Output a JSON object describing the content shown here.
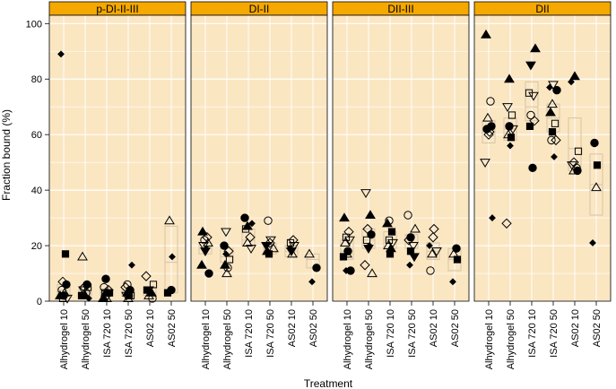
{
  "chart_data": {
    "type": "scatter",
    "xlabel": "Treatment",
    "ylabel": "Fraction bound (%)",
    "ylim": [
      0,
      103
    ],
    "yticks": [
      "0",
      "20",
      "40",
      "60",
      "80",
      "100"
    ],
    "grid": true,
    "categories": [
      "Alhydrogel 10",
      "Alhydrogel 50",
      "ISA 720 10",
      "ISA 720 50",
      "AS02 10",
      "AS02 50"
    ],
    "colors": {
      "strip": "#F5A800",
      "panel": "#FBE6C2",
      "grid": "#FFFFFF",
      "box": "#D4C4A8",
      "marker": "#000000"
    },
    "panels": [
      {
        "label": "p-DI-II-III",
        "boxes": [
          [
            2,
            4,
            6
          ],
          [
            2,
            3,
            5
          ],
          [
            2,
            3,
            4
          ],
          [
            2,
            3,
            4
          ],
          [
            2,
            3,
            5
          ],
          [
            3,
            14,
            27
          ]
        ],
        "points": [
          [
            0,
            89,
            "dm"
          ],
          [
            0,
            17,
            "sq"
          ],
          [
            0,
            7,
            "od"
          ],
          [
            0,
            6,
            "fc"
          ],
          [
            0,
            4,
            "oc"
          ],
          [
            0,
            3,
            "ot"
          ],
          [
            0,
            2,
            "fc"
          ],
          [
            0,
            2,
            "ft"
          ],
          [
            0,
            1,
            "it"
          ],
          [
            0,
            1,
            "os"
          ],
          [
            1,
            16,
            "ot"
          ],
          [
            1,
            6,
            "fc"
          ],
          [
            1,
            5,
            "od"
          ],
          [
            1,
            5,
            "os"
          ],
          [
            1,
            4,
            "it"
          ],
          [
            1,
            3,
            "oc"
          ],
          [
            1,
            2,
            "ft"
          ],
          [
            1,
            2,
            "sq"
          ],
          [
            1,
            1,
            "dm"
          ],
          [
            2,
            8,
            "fc"
          ],
          [
            2,
            5,
            "oc"
          ],
          [
            2,
            4,
            "od"
          ],
          [
            2,
            3,
            "ft"
          ],
          [
            2,
            3,
            "sq"
          ],
          [
            2,
            3,
            "os"
          ],
          [
            2,
            2,
            "it"
          ],
          [
            2,
            1,
            "ot"
          ],
          [
            2,
            1,
            "ft"
          ],
          [
            3,
            13,
            "dm"
          ],
          [
            3,
            6,
            "oc"
          ],
          [
            3,
            5,
            "od"
          ],
          [
            3,
            4,
            "fc"
          ],
          [
            3,
            3,
            "ft"
          ],
          [
            3,
            2,
            "os"
          ],
          [
            3,
            2,
            "it"
          ],
          [
            3,
            2,
            "sq"
          ],
          [
            3,
            1,
            "ot"
          ],
          [
            4,
            9,
            "od"
          ],
          [
            4,
            6,
            "os"
          ],
          [
            4,
            4,
            "it"
          ],
          [
            4,
            4,
            "sq"
          ],
          [
            4,
            3,
            "ft"
          ],
          [
            4,
            2,
            "ot"
          ],
          [
            4,
            1,
            "oc"
          ],
          [
            5,
            29,
            "ot"
          ],
          [
            5,
            16,
            "dm"
          ],
          [
            5,
            4,
            "fc"
          ],
          [
            5,
            3,
            "sq"
          ]
        ]
      },
      {
        "label": "DI-II",
        "boxes": [
          [
            17,
            19,
            21
          ],
          [
            14,
            16,
            19
          ],
          [
            20,
            22,
            26
          ],
          [
            17,
            19,
            21
          ],
          [
            16,
            18,
            20
          ],
          [
            12,
            15,
            17
          ]
        ],
        "points": [
          [
            0,
            25,
            "ft"
          ],
          [
            0,
            23,
            "od"
          ],
          [
            0,
            22,
            "oc"
          ],
          [
            0,
            21,
            "ot"
          ],
          [
            0,
            20,
            "it"
          ],
          [
            0,
            19,
            "dm"
          ],
          [
            0,
            18,
            "fs"
          ],
          [
            0,
            13,
            "ft"
          ],
          [
            0,
            10,
            "fc"
          ],
          [
            1,
            25,
            "it"
          ],
          [
            1,
            20,
            "fc"
          ],
          [
            1,
            18,
            "od"
          ],
          [
            1,
            17,
            "dm"
          ],
          [
            1,
            15,
            "os"
          ],
          [
            1,
            13,
            "ft"
          ],
          [
            1,
            12,
            "oc"
          ],
          [
            1,
            10,
            "ot"
          ],
          [
            2,
            30,
            "fc"
          ],
          [
            2,
            28,
            "dm"
          ],
          [
            2,
            27,
            "ft"
          ],
          [
            2,
            26,
            "os"
          ],
          [
            2,
            23,
            "od"
          ],
          [
            2,
            21,
            "ot"
          ],
          [
            2,
            19,
            "it"
          ],
          [
            3,
            29,
            "oc"
          ],
          [
            3,
            22,
            "it"
          ],
          [
            3,
            21,
            "od"
          ],
          [
            3,
            20,
            "fs"
          ],
          [
            3,
            19,
            "ot"
          ],
          [
            3,
            17,
            "sq"
          ],
          [
            3,
            18,
            "ft"
          ],
          [
            4,
            22,
            "od"
          ],
          [
            4,
            21,
            "os"
          ],
          [
            4,
            20,
            "it"
          ],
          [
            4,
            19,
            "dm"
          ],
          [
            4,
            17,
            "ot"
          ],
          [
            4,
            18,
            "fs"
          ],
          [
            5,
            17,
            "ot"
          ],
          [
            5,
            12,
            "fc"
          ],
          [
            5,
            7,
            "dm"
          ]
        ]
      },
      {
        "label": "DII-III",
        "boxes": [
          [
            15,
            18,
            22
          ],
          [
            19,
            22,
            26
          ],
          [
            19,
            22,
            25
          ],
          [
            19,
            21,
            24
          ],
          [
            15,
            18,
            21
          ],
          [
            11,
            15,
            19
          ]
        ],
        "points": [
          [
            0,
            30,
            "ft"
          ],
          [
            0,
            25,
            "od"
          ],
          [
            0,
            23,
            "os"
          ],
          [
            0,
            22,
            "it"
          ],
          [
            0,
            21,
            "ot"
          ],
          [
            0,
            18,
            "fc"
          ],
          [
            0,
            17,
            "ot"
          ],
          [
            0,
            16,
            "sq"
          ],
          [
            0,
            11,
            "fc"
          ],
          [
            0,
            11,
            "dm"
          ],
          [
            1,
            39,
            "it"
          ],
          [
            1,
            31,
            "ft"
          ],
          [
            1,
            26,
            "od"
          ],
          [
            1,
            24,
            "fc"
          ],
          [
            1,
            22,
            "os"
          ],
          [
            1,
            20,
            "dm"
          ],
          [
            1,
            19,
            "fs"
          ],
          [
            1,
            13,
            "od"
          ],
          [
            1,
            10,
            "ot"
          ],
          [
            2,
            29,
            "oc"
          ],
          [
            2,
            28,
            "ft"
          ],
          [
            2,
            25,
            "sq"
          ],
          [
            2,
            22,
            "os"
          ],
          [
            2,
            21,
            "it"
          ],
          [
            2,
            20,
            "ot"
          ],
          [
            2,
            19,
            "ft"
          ],
          [
            2,
            17,
            "sq"
          ],
          [
            3,
            31,
            "oc"
          ],
          [
            3,
            26,
            "ot"
          ],
          [
            3,
            23,
            "fc"
          ],
          [
            3,
            22,
            "od"
          ],
          [
            3,
            20,
            "it"
          ],
          [
            3,
            18,
            "sq"
          ],
          [
            3,
            16,
            "fs"
          ],
          [
            3,
            13,
            "dm"
          ],
          [
            4,
            26,
            "od"
          ],
          [
            4,
            23,
            "od"
          ],
          [
            4,
            20,
            "dm"
          ],
          [
            4,
            18,
            "it"
          ],
          [
            4,
            17,
            "ot"
          ],
          [
            4,
            11,
            "oc"
          ],
          [
            5,
            19,
            "fc"
          ],
          [
            5,
            17,
            "ot"
          ],
          [
            5,
            15,
            "sq"
          ],
          [
            5,
            7,
            "dm"
          ]
        ]
      },
      {
        "label": "DII",
        "boxes": [
          [
            57,
            61,
            65
          ],
          [
            58,
            62,
            66
          ],
          [
            65,
            70,
            79
          ],
          [
            61,
            66,
            71
          ],
          [
            47,
            55,
            66
          ],
          [
            31,
            42,
            53
          ]
        ],
        "points": [
          [
            0,
            96,
            "ft"
          ],
          [
            0,
            72,
            "oc"
          ],
          [
            0,
            66,
            "ot"
          ],
          [
            0,
            63,
            "fc"
          ],
          [
            0,
            62,
            "fc"
          ],
          [
            0,
            61,
            "od"
          ],
          [
            0,
            60,
            "od"
          ],
          [
            0,
            50,
            "it"
          ],
          [
            0,
            30,
            "dm"
          ],
          [
            1,
            80,
            "ft"
          ],
          [
            1,
            70,
            "it"
          ],
          [
            1,
            67,
            "os"
          ],
          [
            1,
            63,
            "fc"
          ],
          [
            1,
            62,
            "it"
          ],
          [
            1,
            60,
            "ot"
          ],
          [
            1,
            59,
            "sq"
          ],
          [
            1,
            56,
            "dm"
          ],
          [
            1,
            28,
            "od"
          ],
          [
            2,
            91,
            "ft"
          ],
          [
            2,
            85,
            "fs"
          ],
          [
            2,
            75,
            "os"
          ],
          [
            2,
            74,
            "it"
          ],
          [
            2,
            67,
            "oc"
          ],
          [
            2,
            65,
            "od"
          ],
          [
            2,
            63,
            "sq"
          ],
          [
            2,
            48,
            "fc"
          ],
          [
            3,
            78,
            "it"
          ],
          [
            3,
            77,
            "dm"
          ],
          [
            3,
            76,
            "fc"
          ],
          [
            3,
            71,
            "ot"
          ],
          [
            3,
            68,
            "ft"
          ],
          [
            3,
            64,
            "os"
          ],
          [
            3,
            61,
            "sq"
          ],
          [
            3,
            58,
            "od"
          ],
          [
            3,
            58,
            "oc"
          ],
          [
            3,
            52,
            "dm"
          ],
          [
            4,
            81,
            "ft"
          ],
          [
            4,
            79,
            "dm"
          ],
          [
            4,
            54,
            "os"
          ],
          [
            4,
            50,
            "od"
          ],
          [
            4,
            49,
            "it"
          ],
          [
            4,
            48,
            "oc"
          ],
          [
            4,
            47,
            "ot"
          ],
          [
            4,
            47,
            "fc"
          ],
          [
            5,
            57,
            "fc"
          ],
          [
            5,
            49,
            "sq"
          ],
          [
            5,
            41,
            "ot"
          ],
          [
            5,
            21,
            "dm"
          ]
        ]
      }
    ]
  }
}
